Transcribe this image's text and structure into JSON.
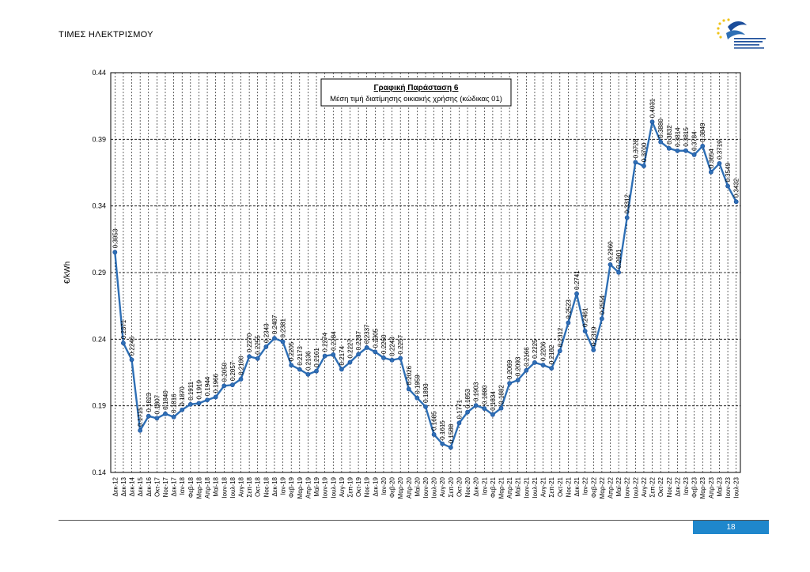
{
  "page": {
    "header": "ΤΙΜΕΣ ΗΛΕΚΤΡΙΣΜΟΥ",
    "page_number": "18"
  },
  "colors": {
    "line": "#2e6fb5",
    "marker": "#2e6fb5",
    "footer_bar": "#1f87cc"
  },
  "chart_data": {
    "type": "line",
    "title": "Γραφική Παράσταση 6",
    "subtitle": "Μέση τιμή διατίμησης οικιακής χρήσης (κώδικας 01)",
    "ylabel": "€/kWh",
    "xlabel": "",
    "ylim": [
      0.14,
      0.44
    ],
    "yticks": [
      "0.14",
      "0.19",
      "0.24",
      "0.29",
      "0.34",
      "0.39",
      "0.44"
    ],
    "grid": true,
    "legend": "none",
    "categories": [
      "Δεκ-12",
      "Δεκ-13",
      "Δεκ-14",
      "Δεκ-15",
      "Δεκ-16",
      "Οκτ-17",
      "Νοε-17",
      "Δεκ-17",
      "Ιαν-18",
      "Φεβ-18",
      "Μαρ-18",
      "Απρ-18",
      "Μαϊ-18",
      "Ιουν-18",
      "Ιουλ-18",
      "Αυγ-18",
      "Σεπ-18",
      "Οκτ-18",
      "Νοε-18",
      "Δεκ-18",
      "Ιαν-19",
      "Φεβ-19",
      "Μαρ-19",
      "Απρ-19",
      "Μαϊ-19",
      "Ιουν-19",
      "Ιουλ-19",
      "Αυγ-19",
      "Σεπ-19",
      "Οκτ-19",
      "Νοε-19",
      "Δεκ-19",
      "Ιαν-20",
      "Φεβ-20",
      "Μαρ-20",
      "Απρ-20",
      "Μαϊ-20",
      "Ιουν-20",
      "Ιουλ-20",
      "Αυγ-20",
      "Σεπ-20",
      "Οκτ-20",
      "Νοε-20",
      "Δεκ-20",
      "Ιαν-21",
      "Φεβ-21",
      "Μαρ-21",
      "Απρ-21",
      "Μαϊ-21",
      "Ιουν-21",
      "Ιουλ-21",
      "Αυγ-21",
      "Σεπ-21",
      "Οκτ-21",
      "Νοε-21",
      "Δεκ-21",
      "Ιαν-22",
      "Φεβ-22",
      "Μαρ-22",
      "Απρ-22",
      "Μαϊ-22",
      "Ιουν-22",
      "Ιουλ-22",
      "Αυγ-22",
      "Σεπ-22",
      "Οκτ-22",
      "Νοε-22",
      "Δεκ-22",
      "Ιαν-23",
      "Φεβ-23",
      "Μαρ-23",
      "Απρ-23",
      "Μαϊ-23",
      "Ιουν-23",
      "Ιουλ-23"
    ],
    "values": [
      0.3053,
      0.2371,
      0.2246,
      0.1715,
      0.1823,
      0.1807,
      0.184,
      0.1816,
      0.187,
      0.1911,
      0.1919,
      0.1944,
      0.1966,
      0.205,
      0.2057,
      0.21,
      0.227,
      0.2255,
      0.2343,
      0.2407,
      0.2381,
      0.2205,
      0.2173,
      0.2136,
      0.2161,
      0.2274,
      0.2284,
      0.2174,
      0.2227,
      0.2287,
      0.2337,
      0.2305,
      0.226,
      0.2243,
      0.2257,
      0.2026,
      0.1959,
      0.1893,
      0.1685,
      0.1615,
      0.1588,
      0.1771,
      0.1853,
      0.1903,
      0.188,
      0.1834,
      0.1882,
      0.2069,
      0.2093,
      0.2166,
      0.2225,
      0.2206,
      0.2182,
      0.2312,
      0.2523,
      0.2741,
      0.2461,
      0.2319,
      0.2554,
      0.296,
      0.2901,
      0.3312,
      0.3728,
      0.37,
      0.4031,
      0.388,
      0.3832,
      0.3814,
      0.3815,
      0.3784,
      0.3849,
      0.3654,
      0.3719,
      0.3549,
      0.3432
    ],
    "data_labels": [
      "0.3053",
      "0.2371",
      "0.2246",
      "0.1715",
      "0.1823",
      "0.1807",
      "0.1840",
      "0.1816",
      "0.1870",
      "0.1911",
      "0.1919",
      "0.1944",
      "0.1966",
      "0.2050",
      "0.2057",
      "0.2100",
      "0.2270",
      "0.2255",
      "0.2343",
      "0.2407",
      "0.2381",
      "0.2205",
      "0.2173",
      "0.2136",
      "0.2161",
      "0.2274",
      "0.2284",
      "0.2174",
      "0.2227",
      "0.2287",
      "0.2337",
      "0.2305",
      "0.2260",
      "0.2243",
      "0.2257",
      "0.2026",
      "0.1959",
      "0.1893",
      "0.1685",
      "0.1615",
      "0.1588",
      "0.1771",
      "0.1853",
      "0.1903",
      "0.1880",
      "0.1834",
      "0.1882",
      "0.2069",
      "0.2093",
      "0.2166",
      "0.2225",
      "0.2206",
      "0.2182",
      "0.2312",
      "0.2523",
      "0.2741",
      "0.2461",
      "0.2319",
      "0.2554",
      "0.2960",
      "0.2901",
      "0.3312",
      "0.3728",
      "0.3700",
      "0.4031",
      "0.3880",
      "0.3832",
      "0.3814",
      "0.3815",
      "0.3784",
      "0.3849",
      "0.3654",
      "0.3719",
      "0.3549",
      "0.3432"
    ]
  }
}
